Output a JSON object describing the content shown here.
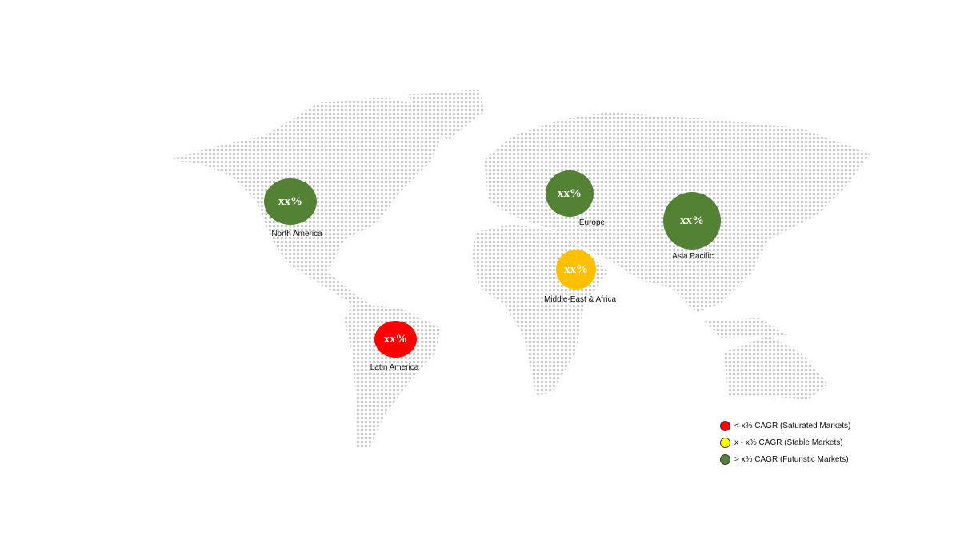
{
  "regions": [
    {
      "name": "North America",
      "value": "xx%",
      "color": "#548235"
    },
    {
      "name": "Europe",
      "value": "xx%",
      "color": "#548235"
    },
    {
      "name": "Asia Pacific",
      "value": "xx%",
      "color": "#548235"
    },
    {
      "name": "Middle-East & Africa",
      "value": "xx%",
      "color": "#ffc000"
    },
    {
      "name": "Latin America",
      "value": "xx%",
      "color": "#ff0000"
    }
  ],
  "legend": [
    {
      "label": "< x% CAGR (Saturated Markets)",
      "color": "#ff0000"
    },
    {
      "label": "x - x% CAGR (Stable Markets)",
      "color": "#ffff00"
    },
    {
      "label": "> x% CAGR (Futuristic Markets)",
      "color": "#548235"
    }
  ],
  "map_dot_color": "#c8c8c8"
}
